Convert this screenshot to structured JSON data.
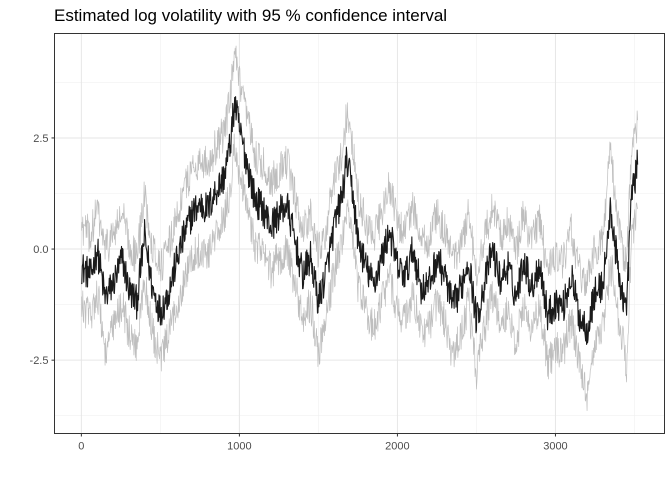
{
  "chart_data": {
    "type": "line",
    "title": "Estimated log volatility with 95 % confidence interval",
    "xlabel": "",
    "ylabel": "",
    "xlim": [
      -170,
      3690
    ],
    "ylim": [
      -4.15,
      4.85
    ],
    "x_ticks": [
      0,
      1000,
      2000,
      3000
    ],
    "x_tick_labels": [
      "0",
      "1000",
      "2000",
      "3000"
    ],
    "y_ticks": [
      -2.5,
      0,
      2.5
    ],
    "y_tick_labels": [
      "-2.5",
      "0.0",
      "2.5"
    ],
    "grid": true,
    "legend": "none",
    "n_points": 3540,
    "series": [
      {
        "role": "estimate",
        "color": "#1a1a1a",
        "points": [
          [
            0,
            -0.4
          ],
          [
            60,
            -0.6
          ],
          [
            100,
            0.0
          ],
          [
            150,
            -1.1
          ],
          [
            200,
            -0.8
          ],
          [
            260,
            -0.2
          ],
          [
            300,
            -0.9
          ],
          [
            350,
            -1.2
          ],
          [
            400,
            0.3
          ],
          [
            450,
            -0.9
          ],
          [
            500,
            -1.4
          ],
          [
            550,
            -1.0
          ],
          [
            600,
            -0.3
          ],
          [
            650,
            0.3
          ],
          [
            700,
            0.8
          ],
          [
            750,
            1.0
          ],
          [
            800,
            0.9
          ],
          [
            850,
            1.3
          ],
          [
            900,
            1.6
          ],
          [
            940,
            2.3
          ],
          [
            970,
            3.3
          ],
          [
            1000,
            2.7
          ],
          [
            1050,
            1.9
          ],
          [
            1100,
            1.1
          ],
          [
            1150,
            0.9
          ],
          [
            1200,
            0.5
          ],
          [
            1250,
            0.8
          ],
          [
            1300,
            1.0
          ],
          [
            1350,
            0.2
          ],
          [
            1400,
            -0.6
          ],
          [
            1450,
            -0.2
          ],
          [
            1500,
            -1.2
          ],
          [
            1550,
            -0.5
          ],
          [
            1600,
            0.5
          ],
          [
            1650,
            1.2
          ],
          [
            1680,
            2.0
          ],
          [
            1720,
            1.2
          ],
          [
            1750,
            0.2
          ],
          [
            1800,
            -0.4
          ],
          [
            1850,
            -0.8
          ],
          [
            1900,
            -0.2
          ],
          [
            1950,
            0.4
          ],
          [
            2000,
            -0.4
          ],
          [
            2050,
            -0.6
          ],
          [
            2100,
            0.0
          ],
          [
            2150,
            -0.9
          ],
          [
            2200,
            -0.8
          ],
          [
            2250,
            -0.2
          ],
          [
            2300,
            -0.6
          ],
          [
            2350,
            -1.3
          ],
          [
            2400,
            -0.9
          ],
          [
            2450,
            -0.2
          ],
          [
            2500,
            -1.6
          ],
          [
            2550,
            -0.8
          ],
          [
            2600,
            0.0
          ],
          [
            2650,
            -0.7
          ],
          [
            2700,
            -0.4
          ],
          [
            2750,
            -1.1
          ],
          [
            2800,
            -0.2
          ],
          [
            2850,
            -0.9
          ],
          [
            2900,
            -0.3
          ],
          [
            2950,
            -1.5
          ],
          [
            3000,
            -1.2
          ],
          [
            3050,
            -1.3
          ],
          [
            3100,
            -0.6
          ],
          [
            3150,
            -1.5
          ],
          [
            3200,
            -1.8
          ],
          [
            3250,
            -1.0
          ],
          [
            3300,
            -0.8
          ],
          [
            3350,
            0.9
          ],
          [
            3400,
            -0.6
          ],
          [
            3450,
            -1.4
          ],
          [
            3480,
            1.2
          ],
          [
            3520,
            1.9
          ]
        ]
      },
      {
        "role": "upper 95 % bound",
        "color": "#bebebe",
        "points": [
          [
            0,
            0.5
          ],
          [
            60,
            0.3
          ],
          [
            100,
            0.9
          ],
          [
            150,
            0.0
          ],
          [
            200,
            0.3
          ],
          [
            260,
            0.8
          ],
          [
            300,
            0.1
          ],
          [
            350,
            -0.2
          ],
          [
            400,
            1.2
          ],
          [
            450,
            0.1
          ],
          [
            500,
            -0.4
          ],
          [
            550,
            0.0
          ],
          [
            600,
            0.7
          ],
          [
            650,
            1.3
          ],
          [
            700,
            1.8
          ],
          [
            750,
            2.0
          ],
          [
            800,
            1.9
          ],
          [
            850,
            2.3
          ],
          [
            900,
            2.6
          ],
          [
            940,
            3.3
          ],
          [
            970,
            4.4
          ],
          [
            1000,
            3.7
          ],
          [
            1050,
            2.9
          ],
          [
            1100,
            2.1
          ],
          [
            1150,
            1.9
          ],
          [
            1200,
            1.5
          ],
          [
            1250,
            1.8
          ],
          [
            1300,
            2.0
          ],
          [
            1350,
            1.2
          ],
          [
            1400,
            0.4
          ],
          [
            1450,
            0.8
          ],
          [
            1500,
            -0.1
          ],
          [
            1550,
            0.5
          ],
          [
            1600,
            1.5
          ],
          [
            1650,
            2.2
          ],
          [
            1680,
            3.1
          ],
          [
            1720,
            2.2
          ],
          [
            1750,
            1.2
          ],
          [
            1800,
            0.6
          ],
          [
            1850,
            0.2
          ],
          [
            1900,
            0.8
          ],
          [
            1950,
            1.4
          ],
          [
            2000,
            0.6
          ],
          [
            2050,
            0.4
          ],
          [
            2100,
            1.0
          ],
          [
            2150,
            0.1
          ],
          [
            2200,
            0.2
          ],
          [
            2250,
            0.8
          ],
          [
            2300,
            0.4
          ],
          [
            2350,
            -0.3
          ],
          [
            2400,
            0.1
          ],
          [
            2450,
            0.8
          ],
          [
            2500,
            -0.5
          ],
          [
            2550,
            0.2
          ],
          [
            2600,
            1.0
          ],
          [
            2650,
            0.3
          ],
          [
            2700,
            0.6
          ],
          [
            2750,
            -0.1
          ],
          [
            2800,
            0.8
          ],
          [
            2850,
            0.1
          ],
          [
            2900,
            0.7
          ],
          [
            2950,
            -0.5
          ],
          [
            3000,
            -0.2
          ],
          [
            3050,
            -0.3
          ],
          [
            3100,
            0.4
          ],
          [
            3150,
            -0.5
          ],
          [
            3200,
            -0.8
          ],
          [
            3250,
            0.0
          ],
          [
            3300,
            0.2
          ],
          [
            3350,
            2.3
          ],
          [
            3400,
            0.4
          ],
          [
            3450,
            -0.4
          ],
          [
            3480,
            2.2
          ],
          [
            3520,
            2.9
          ]
        ]
      },
      {
        "role": "lower 95 % bound",
        "color": "#bebebe",
        "points": [
          [
            0,
            -1.3
          ],
          [
            60,
            -1.5
          ],
          [
            100,
            -0.9
          ],
          [
            150,
            -2.3
          ],
          [
            200,
            -1.8
          ],
          [
            260,
            -1.2
          ],
          [
            300,
            -1.9
          ],
          [
            350,
            -2.2
          ],
          [
            400,
            -0.7
          ],
          [
            450,
            -1.9
          ],
          [
            500,
            -2.5
          ],
          [
            550,
            -2.0
          ],
          [
            600,
            -1.3
          ],
          [
            650,
            -0.7
          ],
          [
            700,
            -0.2
          ],
          [
            750,
            0.0
          ],
          [
            800,
            -0.1
          ],
          [
            850,
            0.3
          ],
          [
            900,
            0.6
          ],
          [
            940,
            1.3
          ],
          [
            970,
            2.3
          ],
          [
            1000,
            1.7
          ],
          [
            1050,
            0.9
          ],
          [
            1100,
            0.1
          ],
          [
            1150,
            -0.1
          ],
          [
            1200,
            -0.5
          ],
          [
            1250,
            -0.2
          ],
          [
            1300,
            0.0
          ],
          [
            1350,
            -0.8
          ],
          [
            1400,
            -1.6
          ],
          [
            1450,
            -1.2
          ],
          [
            1500,
            -2.3
          ],
          [
            1550,
            -1.5
          ],
          [
            1600,
            -0.5
          ],
          [
            1650,
            0.2
          ],
          [
            1680,
            1.0
          ],
          [
            1720,
            0.2
          ],
          [
            1750,
            -0.8
          ],
          [
            1800,
            -1.4
          ],
          [
            1850,
            -1.8
          ],
          [
            1900,
            -1.2
          ],
          [
            1950,
            -0.6
          ],
          [
            2000,
            -1.4
          ],
          [
            2050,
            -1.6
          ],
          [
            2100,
            -1.0
          ],
          [
            2150,
            -1.9
          ],
          [
            2200,
            -1.8
          ],
          [
            2250,
            -1.2
          ],
          [
            2300,
            -1.6
          ],
          [
            2350,
            -2.5
          ],
          [
            2400,
            -1.9
          ],
          [
            2450,
            -1.2
          ],
          [
            2500,
            -2.8
          ],
          [
            2550,
            -1.8
          ],
          [
            2600,
            -1.0
          ],
          [
            2650,
            -1.7
          ],
          [
            2700,
            -1.4
          ],
          [
            2750,
            -2.1
          ],
          [
            2800,
            -1.2
          ],
          [
            2850,
            -1.9
          ],
          [
            2900,
            -1.3
          ],
          [
            2950,
            -2.6
          ],
          [
            3000,
            -2.2
          ],
          [
            3050,
            -2.3
          ],
          [
            3100,
            -1.6
          ],
          [
            3150,
            -2.6
          ],
          [
            3200,
            -3.3
          ],
          [
            3250,
            -2.0
          ],
          [
            3300,
            -1.8
          ],
          [
            3350,
            -0.3
          ],
          [
            3400,
            -1.6
          ],
          [
            3450,
            -2.6
          ],
          [
            3480,
            0.2
          ],
          [
            3520,
            0.9
          ]
        ]
      }
    ]
  }
}
